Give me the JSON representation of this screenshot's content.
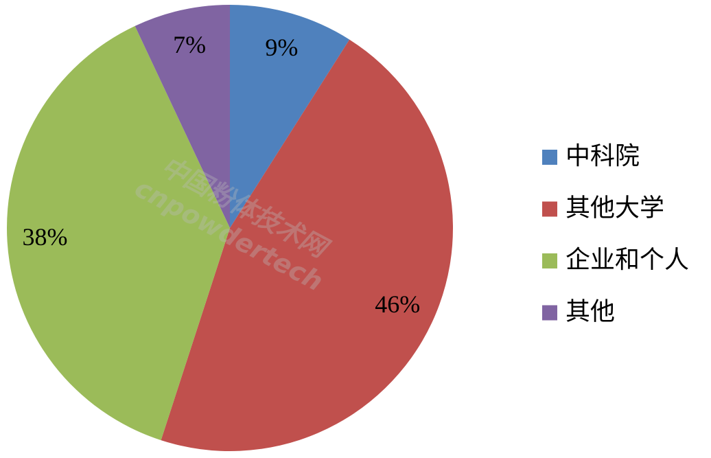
{
  "chart_data": {
    "type": "pie",
    "categories": [
      "中科院",
      "其他大学",
      "企业和个人",
      "其他"
    ],
    "values": [
      9,
      46,
      38,
      7
    ],
    "value_labels": [
      "9%",
      "46%",
      "38%",
      "7%"
    ],
    "colors": [
      "#4f81bd",
      "#c0504d",
      "#9bbb59",
      "#8064a2"
    ],
    "legend": "right"
  },
  "watermark": [
    "中国粉体技术网",
    "cnpowdertech"
  ]
}
